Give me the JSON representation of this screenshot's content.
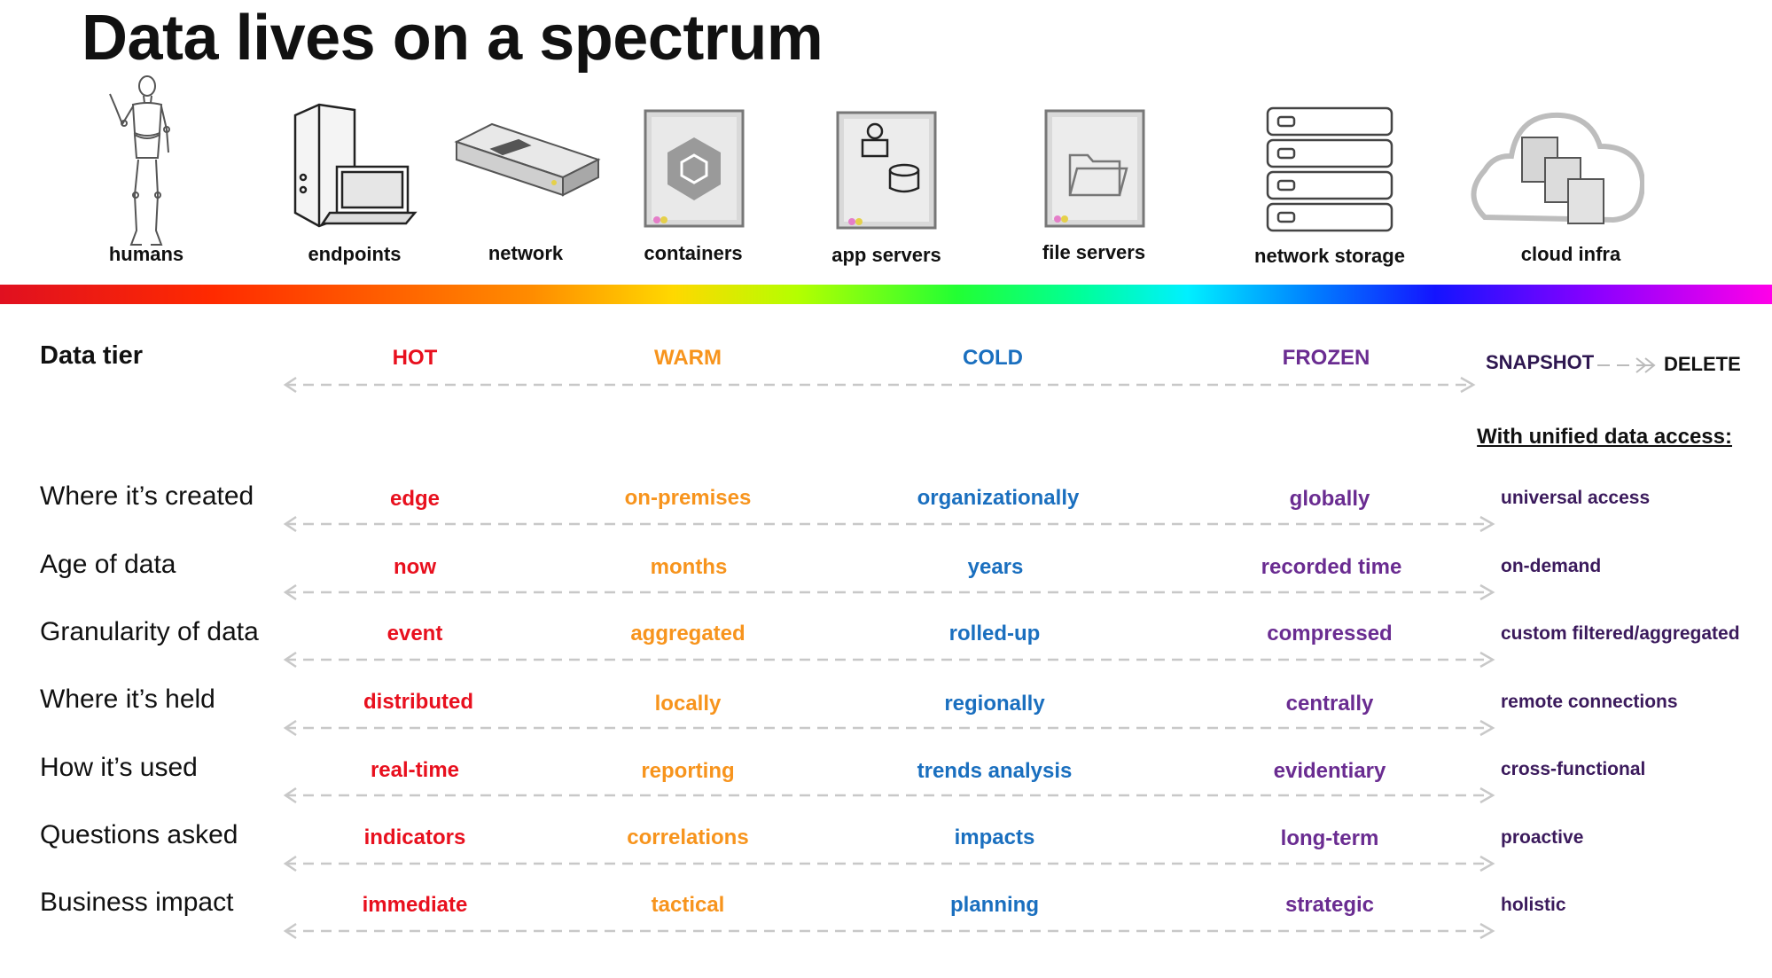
{
  "title": "Data lives on a spectrum",
  "colors": {
    "hot": "#e8101e",
    "warm": "#f7941d",
    "cold": "#1a6fbf",
    "frozen": "#6a2c91",
    "unified": "#3b1a5c"
  },
  "devices": [
    {
      "label": "humans",
      "icon": "mannequin-icon"
    },
    {
      "label": "endpoints",
      "icon": "desktop-laptop-icon"
    },
    {
      "label": "network",
      "icon": "network-switch-icon"
    },
    {
      "label": "containers",
      "icon": "container-cube-icon"
    },
    {
      "label": "app servers",
      "icon": "app-server-icon"
    },
    {
      "label": "file servers",
      "icon": "file-server-folder-icon"
    },
    {
      "label": "network storage",
      "icon": "storage-rack-icon"
    },
    {
      "label": "cloud infra",
      "icon": "cloud-servers-icon"
    }
  ],
  "tiers": {
    "row_label": "Data tier",
    "hot": "HOT",
    "warm": "WARM",
    "cold": "COLD",
    "frozen": "FROZEN",
    "snapshot": "SNAPSHOT",
    "delete": "DELETE"
  },
  "unified_header": "With unified data access:",
  "rows": [
    {
      "label": "Where it’s created",
      "hot": "edge",
      "warm": "on-premises",
      "cold": "organizationally",
      "frozen": "globally",
      "unified": "universal access"
    },
    {
      "label": "Age of data",
      "hot": "now",
      "warm": "months",
      "cold": "years",
      "frozen": "recorded time",
      "unified": "on-demand"
    },
    {
      "label": "Granularity of data",
      "hot": "event",
      "warm": "aggregated",
      "cold": "rolled-up",
      "frozen": "compressed",
      "unified": "custom filtered/aggregated"
    },
    {
      "label": "Where it’s held",
      "hot": "distributed",
      "warm": "locally",
      "cold": "regionally",
      "frozen": "centrally",
      "unified": "remote connections"
    },
    {
      "label": "How it’s used",
      "hot": "real-time",
      "warm": "reporting",
      "cold": "trends analysis",
      "frozen": "evidentiary",
      "unified": "cross-functional"
    },
    {
      "label": "Questions asked",
      "hot": "indicators",
      "warm": "correlations",
      "cold": "impacts",
      "frozen": "long-term",
      "unified": "proactive"
    },
    {
      "label": "Business impact",
      "hot": "immediate",
      "warm": "tactical",
      "cold": "planning",
      "frozen": "strategic",
      "unified": "holistic"
    }
  ]
}
